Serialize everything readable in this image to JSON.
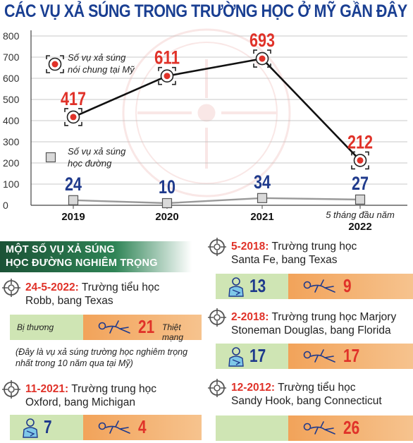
{
  "title": "CÁC VỤ XẢ SÚNG TRONG TRƯỜNG HỌC Ở MỸ GẦN ĐÂY",
  "chart_data": {
    "type": "line",
    "categories": [
      "2019",
      "2020",
      "2021",
      "5 tháng đầu năm 2022"
    ],
    "category_labels": [
      [
        "2019"
      ],
      [
        "2020"
      ],
      [
        "2021"
      ],
      [
        "5 tháng đầu năm",
        "2022"
      ]
    ],
    "yticks": [
      0,
      100,
      200,
      300,
      400,
      500,
      600,
      700,
      800
    ],
    "ylim": [
      0,
      800
    ],
    "series": [
      {
        "name": "Số vụ xả súng nói chung tại Mỹ",
        "legend_lines": [
          "Số vụ xả súng",
          "nói chung tại Mỹ"
        ],
        "values": [
          417,
          611,
          693,
          212
        ],
        "color": "#e03229"
      },
      {
        "name": "Số vụ xả súng học đường",
        "legend_lines": [
          "Số vụ xả súng",
          "học đường"
        ],
        "values": [
          24,
          10,
          34,
          27
        ],
        "color": "#1f3a8c"
      }
    ]
  },
  "section_title": [
    "MỘT SỐ VỤ XẢ SÚNG",
    "HỌC ĐƯỜNG NGHIÊM TRỌNG"
  ],
  "labels": {
    "injured": "Bị thương",
    "killed": "Thiệt mạng"
  },
  "note": "(Đây là vụ xả súng trường học nghiêm trọng nhất trong 10 năm qua tại Mỹ)",
  "incidents": [
    {
      "date": "24-5-2022:",
      "line1": " Trường tiểu học",
      "line2": "Robb, bang Texas",
      "injured": "",
      "killed": "21"
    },
    {
      "date": "11-2021:",
      "line1": " Trường trung học",
      "line2": "Oxford, bang Michigan",
      "injured": "7",
      "killed": "4"
    },
    {
      "date": "5-2018:",
      "line1": " Trường trung học",
      "line2": "Santa Fe, bang Texas",
      "injured": "13",
      "killed": "9"
    },
    {
      "date": "2-2018:",
      "line1": " Trường trung học Marjory",
      "line2": "Stoneman Douglas, bang Florida",
      "injured": "17",
      "killed": "17"
    },
    {
      "date": "12-2012:",
      "line1": " Trường tiểu học",
      "line2": "Sandy Hook, bang Connecticut",
      "injured": "",
      "killed": "26"
    }
  ],
  "colors": {
    "title": "#1a3f92",
    "red": "#e03229",
    "blue": "#1f3a8c",
    "green": "#cfe5b4",
    "orange": "#f2a35a"
  }
}
